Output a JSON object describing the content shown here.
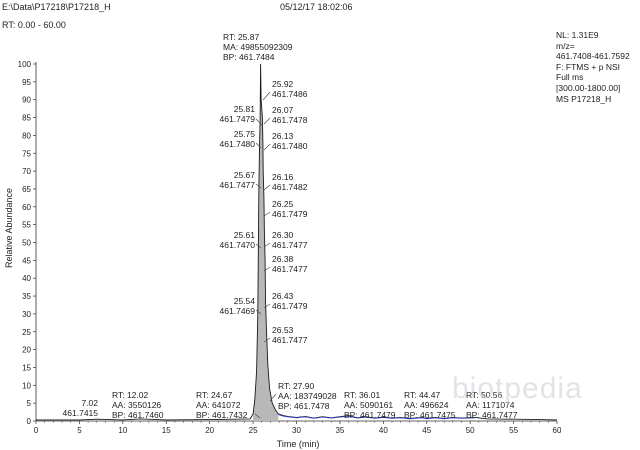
{
  "header": {
    "path": "E:\\Data\\P17218\\P17218_H",
    "datetime": "05/12/17 18:02:06",
    "rt_range": "RT: 0.00 - 60.00"
  },
  "info_box": {
    "lines": [
      "NL: 1.31E9",
      "m/z=",
      "461.7408-461.7592",
      "F: FTMS + p NSI",
      "Full ms",
      "[300.00-1800.00]",
      "MS P17218_H"
    ]
  },
  "watermark": "biotpedia",
  "chart_data": {
    "type": "line",
    "xlabel": "Time (min)",
    "ylabel": "Relative Abundance",
    "xlim": [
      0,
      60
    ],
    "ylim": [
      0,
      100
    ],
    "x_ticks": [
      0,
      5,
      10,
      15,
      20,
      25,
      30,
      35,
      40,
      45,
      50,
      55,
      60
    ],
    "y_ticks": [
      0,
      5,
      10,
      15,
      20,
      25,
      30,
      35,
      40,
      45,
      50,
      55,
      60,
      65,
      70,
      75,
      80,
      85,
      90,
      95,
      100
    ],
    "trace": [
      [
        0,
        0.3
      ],
      [
        5,
        0.3
      ],
      [
        7.02,
        0.5
      ],
      [
        10,
        0.3
      ],
      [
        12.02,
        0.6
      ],
      [
        15,
        0.3
      ],
      [
        20,
        0.4
      ],
      [
        24.67,
        0.6
      ],
      [
        25.0,
        2
      ],
      [
        25.2,
        6
      ],
      [
        25.4,
        14
      ],
      [
        25.54,
        30
      ],
      [
        25.61,
        50
      ],
      [
        25.67,
        66
      ],
      [
        25.75,
        78
      ],
      [
        25.81,
        84
      ],
      [
        25.87,
        100
      ],
      [
        25.92,
        90
      ],
      [
        26.07,
        85
      ],
      [
        26.13,
        78
      ],
      [
        26.16,
        70
      ],
      [
        26.25,
        63
      ],
      [
        26.3,
        53
      ],
      [
        26.38,
        45
      ],
      [
        26.43,
        34
      ],
      [
        26.53,
        26
      ],
      [
        26.7,
        16
      ],
      [
        26.9,
        9
      ],
      [
        27.2,
        5
      ],
      [
        27.6,
        3
      ],
      [
        27.9,
        2
      ],
      [
        28.5,
        1.5
      ],
      [
        29,
        1.3
      ],
      [
        30,
        1.0
      ],
      [
        31,
        1.3
      ],
      [
        32,
        0.8
      ],
      [
        33,
        1.2
      ],
      [
        34,
        0.9
      ],
      [
        35,
        1.2
      ],
      [
        36.01,
        1.5
      ],
      [
        37,
        0.9
      ],
      [
        38,
        1.2
      ],
      [
        39,
        0.8
      ],
      [
        40,
        1.1
      ],
      [
        41,
        0.8
      ],
      [
        42,
        1.0
      ],
      [
        43,
        0.7
      ],
      [
        44.47,
        1.0
      ],
      [
        45,
        0.7
      ],
      [
        46,
        1.0
      ],
      [
        47,
        0.7
      ],
      [
        48,
        1.0
      ],
      [
        49,
        0.8
      ],
      [
        50.56,
        1.0
      ],
      [
        52,
        0.6
      ],
      [
        55,
        0.5
      ],
      [
        58,
        0.4
      ],
      [
        60,
        0.3
      ]
    ],
    "peak_labels": [
      {
        "x": 25.87,
        "lines": [
          "RT: 25.87",
          "MA: 49855092309",
          "BP: 461.7484"
        ]
      },
      {
        "x": 25.92,
        "lines": [
          "25.92",
          "461.7486"
        ]
      },
      {
        "x": 25.81,
        "lines": [
          "25.81",
          "461.7479"
        ]
      },
      {
        "x": 26.07,
        "lines": [
          "26.07",
          "461.7478"
        ]
      },
      {
        "x": 25.75,
        "lines": [
          "25.75",
          "461.7480"
        ]
      },
      {
        "x": 26.13,
        "lines": [
          "26.13",
          "461.7480"
        ]
      },
      {
        "x": 25.67,
        "lines": [
          "25.67",
          "461.7477"
        ]
      },
      {
        "x": 26.16,
        "lines": [
          "26.16",
          "461.7482"
        ]
      },
      {
        "x": 26.25,
        "lines": [
          "26.25",
          "461.7479"
        ]
      },
      {
        "x": 25.61,
        "lines": [
          "25.61",
          "461.7470"
        ]
      },
      {
        "x": 26.3,
        "lines": [
          "26.30",
          "461.7477"
        ]
      },
      {
        "x": 26.38,
        "lines": [
          "26.38",
          "461.7477"
        ]
      },
      {
        "x": 26.43,
        "lines": [
          "26.43",
          "461.7479"
        ]
      },
      {
        "x": 25.54,
        "lines": [
          "25.54",
          "461.7469"
        ]
      },
      {
        "x": 26.53,
        "lines": [
          "26.53",
          "461.7477"
        ]
      },
      {
        "x": 7.02,
        "lines": [
          "7.02",
          "461.7415"
        ]
      },
      {
        "x": 12.02,
        "lines": [
          "RT: 12.02",
          "AA: 3550126",
          "BP: 461.7460"
        ]
      },
      {
        "x": 24.67,
        "lines": [
          "RT: 24.67",
          "AA: 641072",
          "BP: 461.7432"
        ]
      },
      {
        "x": 27.9,
        "lines": [
          "RT: 27.90",
          "AA: 183749028",
          "BP: 461.7478"
        ]
      },
      {
        "x": 36.01,
        "lines": [
          "RT: 36.01",
          "AA: 5090161",
          "BP: 461.7479"
        ]
      },
      {
        "x": 44.47,
        "lines": [
          "RT: 44.47",
          "AA: 496624",
          "BP: 461.7475"
        ]
      },
      {
        "x": 50.56,
        "lines": [
          "RT: 50.56",
          "AA: 1171074",
          "BP: 461.7477"
        ]
      }
    ]
  }
}
